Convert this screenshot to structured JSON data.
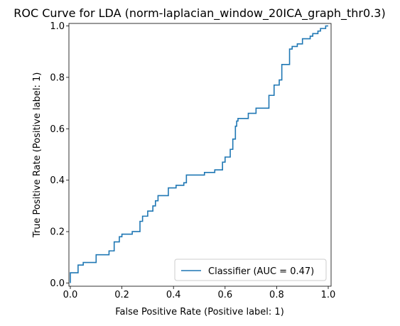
{
  "chart_data": {
    "type": "line",
    "title": "ROC Curve for LDA (norm-laplacian_window_20ICA_graph_thr0.3)",
    "xlabel": "False Positive Rate (Positive label: 1)",
    "ylabel": "True Positive Rate (Positive label: 1)",
    "xlim": [
      0,
      1
    ],
    "ylim": [
      0,
      1
    ],
    "xticks": [
      "0.0",
      "0.2",
      "0.4",
      "0.6",
      "0.8",
      "1.0"
    ],
    "yticks": [
      "0.0",
      "0.2",
      "0.4",
      "0.6",
      "0.8",
      "1.0"
    ],
    "grid": false,
    "legend_position": "bottom-right",
    "series": [
      {
        "name": "Classifier (AUC = 0.47)",
        "color": "#1f77b4",
        "x": [
          0.0,
          0.0,
          0.03,
          0.03,
          0.05,
          0.05,
          0.1,
          0.1,
          0.15,
          0.15,
          0.17,
          0.17,
          0.19,
          0.19,
          0.2,
          0.2,
          0.24,
          0.24,
          0.27,
          0.27,
          0.28,
          0.28,
          0.3,
          0.3,
          0.32,
          0.32,
          0.33,
          0.33,
          0.34,
          0.34,
          0.38,
          0.38,
          0.41,
          0.41,
          0.44,
          0.44,
          0.45,
          0.45,
          0.52,
          0.52,
          0.56,
          0.56,
          0.59,
          0.59,
          0.6,
          0.6,
          0.62,
          0.62,
          0.63,
          0.63,
          0.64,
          0.64,
          0.645,
          0.645,
          0.65,
          0.65,
          0.69,
          0.69,
          0.72,
          0.72,
          0.77,
          0.77,
          0.79,
          0.79,
          0.81,
          0.81,
          0.82,
          0.82,
          0.85,
          0.85,
          0.86,
          0.86,
          0.88,
          0.88,
          0.9,
          0.9,
          0.93,
          0.93,
          0.94,
          0.94,
          0.96,
          0.96,
          0.97,
          0.97,
          0.99,
          0.99,
          1.0
        ],
        "y": [
          0.0,
          0.04,
          0.04,
          0.07,
          0.07,
          0.08,
          0.08,
          0.11,
          0.11,
          0.125,
          0.125,
          0.16,
          0.16,
          0.18,
          0.18,
          0.19,
          0.19,
          0.2,
          0.2,
          0.24,
          0.24,
          0.26,
          0.26,
          0.28,
          0.28,
          0.3,
          0.3,
          0.32,
          0.32,
          0.34,
          0.34,
          0.37,
          0.37,
          0.38,
          0.38,
          0.39,
          0.39,
          0.42,
          0.42,
          0.43,
          0.43,
          0.44,
          0.44,
          0.47,
          0.47,
          0.49,
          0.49,
          0.52,
          0.52,
          0.56,
          0.56,
          0.61,
          0.61,
          0.63,
          0.63,
          0.64,
          0.64,
          0.66,
          0.66,
          0.68,
          0.68,
          0.73,
          0.73,
          0.77,
          0.77,
          0.79,
          0.79,
          0.85,
          0.85,
          0.91,
          0.91,
          0.92,
          0.92,
          0.93,
          0.93,
          0.95,
          0.95,
          0.96,
          0.96,
          0.97,
          0.97,
          0.98,
          0.98,
          0.99,
          0.99,
          1.0,
          1.0
        ]
      }
    ]
  }
}
